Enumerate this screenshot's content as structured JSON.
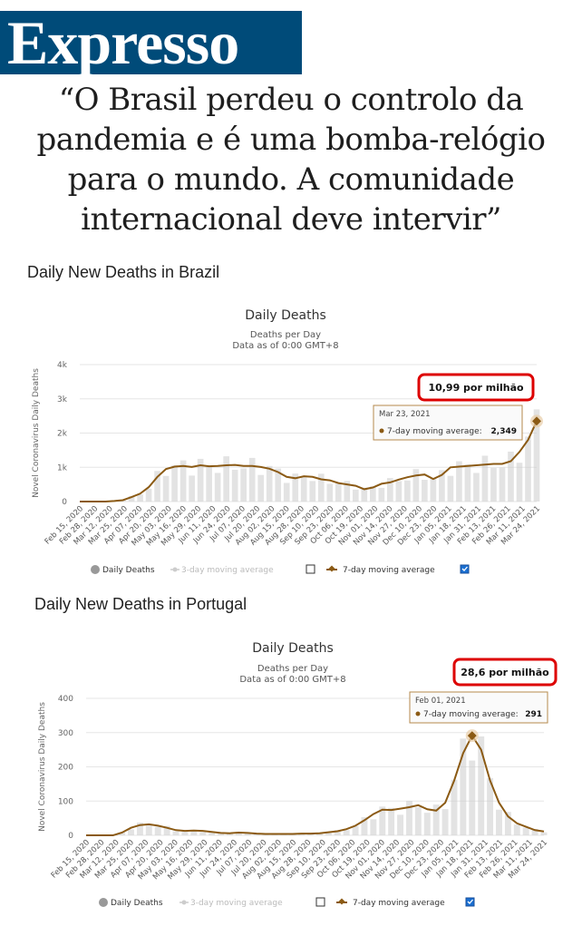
{
  "header": {
    "logo_text": "Expresso",
    "headline": "“O Brasil perdeu o controlo da pandemia e é uma bomba-relógio para o mundo. A comunidade internacional deve intervir”"
  },
  "colors": {
    "brand": "#004b79",
    "line": "#8b5a14",
    "bar": "#cccccc",
    "highlight_border": "#dd0000"
  },
  "chart_data": [
    {
      "section_title": "Daily New Deaths in Brazil",
      "type": "bar",
      "title": "Daily Deaths",
      "subtitle_line1": "Deaths per Day",
      "subtitle_line2": "Data as of 0:00 GMT+8",
      "ylabel": "Novel Coronavirus Daily Deaths",
      "ylim": [
        0,
        4000
      ],
      "yticks": [
        0,
        1000,
        2000,
        3000,
        4000
      ],
      "ytick_labels": [
        "0",
        "1k",
        "2k",
        "3k",
        "4k"
      ],
      "xtick_labels": [
        "Feb 15, 2020",
        "Feb 28, 2020",
        "Mar 12, 2020",
        "Mar 25, 2020",
        "Apr 07, 2020",
        "Apr 20, 2020",
        "May 03, 2020",
        "May 16, 2020",
        "May 29, 2020",
        "Jun 11, 2020",
        "Jun 24, 2020",
        "Jul 07, 2020",
        "Jul 20, 2020",
        "Aug 02, 2020",
        "Aug 15, 2020",
        "Aug 28, 2020",
        "Sep 10, 2020",
        "Sep 23, 2020",
        "Oct 06, 2020",
        "Oct 19, 2020",
        "Nov 01, 2020",
        "Nov 14, 2020",
        "Nov 27, 2020",
        "Dec 10, 2020",
        "Dec 23, 2020",
        "Jan 05, 2021",
        "Jan 18, 2021",
        "Jan 31, 2021",
        "Feb 13, 2021",
        "Feb 26, 2021",
        "Mar 11, 2021",
        "Mar 24, 2021"
      ],
      "moving_average_7day": [
        0,
        0,
        0,
        0,
        15,
        40,
        130,
        230,
        420,
        720,
        950,
        1020,
        1040,
        1010,
        1060,
        1030,
        1040,
        1060,
        1070,
        1040,
        1040,
        1010,
        960,
        860,
        720,
        680,
        740,
        720,
        650,
        620,
        540,
        500,
        460,
        360,
        410,
        520,
        560,
        640,
        710,
        760,
        790,
        660,
        780,
        1000,
        1020,
        1040,
        1060,
        1080,
        1100,
        1100,
        1180,
        1450,
        1800,
        2349
      ],
      "highlight_label": "10,99 por milhão",
      "tooltip": {
        "date": "Mar 23, 2021",
        "label": "7-day moving average:",
        "value": "2,349"
      },
      "legend": {
        "daily": "Daily Deaths",
        "ma3": "3-day moving average",
        "ma7": "7-day moving average"
      }
    },
    {
      "section_title": "Daily New Deaths in Portugal",
      "type": "bar",
      "title": "Daily Deaths",
      "subtitle_line1": "Deaths per Day",
      "subtitle_line2": "Data as of 0:00 GMT+8",
      "ylabel": "Novel Coronavirus Daily Deaths",
      "ylim": [
        0,
        400
      ],
      "yticks": [
        0,
        100,
        200,
        300,
        400
      ],
      "ytick_labels": [
        "0",
        "100",
        "200",
        "300",
        "400"
      ],
      "xtick_labels": [
        "Feb 15, 2020",
        "Feb 28, 2020",
        "Mar 12, 2020",
        "Mar 25, 2020",
        "Apr 07, 2020",
        "Apr 20, 2020",
        "May 03, 2020",
        "May 16, 2020",
        "May 29, 2020",
        "Jun 11, 2020",
        "Jun 24, 2020",
        "Jul 07, 2020",
        "Jul 20, 2020",
        "Aug 02, 2020",
        "Aug 15, 2020",
        "Aug 28, 2020",
        "Sep 10, 2020",
        "Sep 23, 2020",
        "Oct 06, 2020",
        "Oct 19, 2020",
        "Nov 01, 2020",
        "Nov 14, 2020",
        "Nov 27, 2020",
        "Dec 10, 2020",
        "Dec 23, 2020",
        "Jan 05, 2021",
        "Jan 18, 2021",
        "Jan 31, 2021",
        "Feb 13, 2021",
        "Feb 26, 2021",
        "Mar 11, 2021",
        "Mar 24, 2021"
      ],
      "moving_average_7day": [
        0,
        0,
        0,
        0,
        8,
        22,
        30,
        32,
        28,
        22,
        15,
        13,
        14,
        13,
        10,
        7,
        6,
        8,
        7,
        5,
        4,
        4,
        4,
        4,
        5,
        5,
        6,
        9,
        12,
        18,
        28,
        44,
        62,
        75,
        74,
        78,
        82,
        88,
        76,
        72,
        95,
        160,
        240,
        291,
        250,
        160,
        95,
        55,
        35,
        25,
        15,
        11
      ],
      "highlight_label": "28,6 por milhão",
      "tooltip": {
        "date": "Feb 01, 2021",
        "label": "7-day moving average:",
        "value": "291"
      },
      "legend": {
        "daily": "Daily Deaths",
        "ma3": "3-day moving average",
        "ma7": "7-day moving average"
      }
    }
  ]
}
